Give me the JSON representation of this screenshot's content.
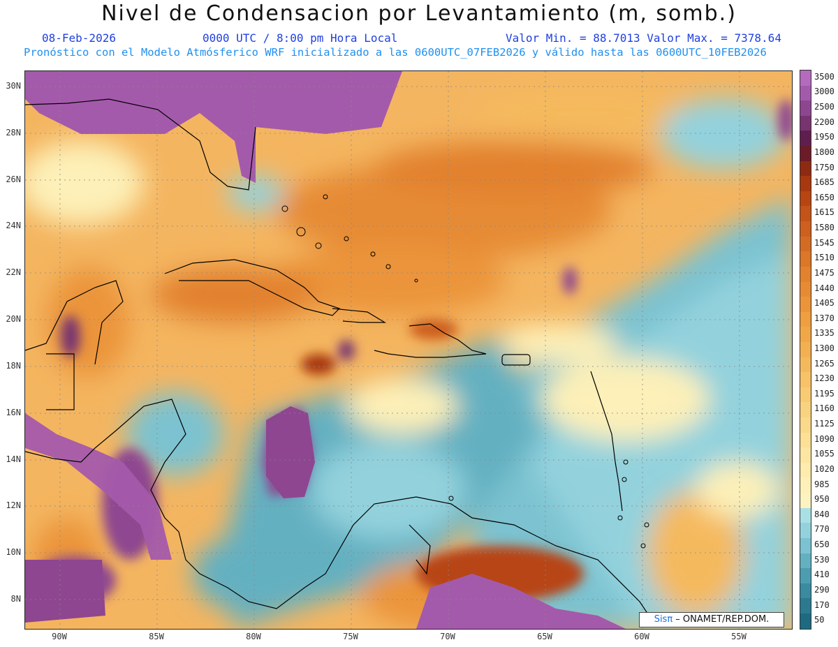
{
  "header": {
    "title": "Nivel de Condensacion por Levantamiento (m, somb.)",
    "date": "08-Feb-2026",
    "time": "0000 UTC / 8:00 pm Hora Local",
    "minmax": "Valor Min. = 88.7013  Valor Max. = 7378.64",
    "description": "Pronóstico con el Modelo Atmósferico WRF inicializado a las 0600UTC_07FEB2026 y válido hasta las  0600UTC_10FEB2026"
  },
  "map": {
    "projection": "lat-lon",
    "lon_range": [
      -92,
      -52.5
    ],
    "lat_range": [
      7,
      30.5
    ],
    "lat_ticks": [
      {
        "value": 30,
        "label": "30N"
      },
      {
        "value": 28,
        "label": "28N"
      },
      {
        "value": 26,
        "label": "26N"
      },
      {
        "value": 24,
        "label": "24N"
      },
      {
        "value": 22,
        "label": "22N"
      },
      {
        "value": 20,
        "label": "20N"
      },
      {
        "value": 18,
        "label": "18N"
      },
      {
        "value": 16,
        "label": "16N"
      },
      {
        "value": 14,
        "label": "14N"
      },
      {
        "value": 12,
        "label": "12N"
      },
      {
        "value": 10,
        "label": "10N"
      },
      {
        "value": 8,
        "label": "8N"
      }
    ],
    "lon_ticks": [
      {
        "value": -90,
        "label": "90W"
      },
      {
        "value": -85,
        "label": "85W"
      },
      {
        "value": -80,
        "label": "80W"
      },
      {
        "value": -75,
        "label": "75W"
      },
      {
        "value": -70,
        "label": "70W"
      },
      {
        "value": -65,
        "label": "65W"
      },
      {
        "value": -60,
        "label": "60W"
      },
      {
        "value": -55,
        "label": "55W"
      }
    ],
    "gridlines": "dotted"
  },
  "colorbar": {
    "labels": [
      "3500",
      "3000",
      "2500",
      "2200",
      "1950",
      "1800",
      "1750",
      "1685",
      "1650",
      "1615",
      "1580",
      "1545",
      "1510",
      "1475",
      "1440",
      "1405",
      "1370",
      "1335",
      "1300",
      "1265",
      "1230",
      "1195",
      "1160",
      "1125",
      "1090",
      "1055",
      "1020",
      "985",
      "950",
      "840",
      "770",
      "650",
      "530",
      "410",
      "290",
      "170",
      "50"
    ],
    "colors": [
      "#b46bbd",
      "#a45aab",
      "#8e4690",
      "#78346f",
      "#5e1f4f",
      "#6b1c28",
      "#8f2a12",
      "#a8380f",
      "#b74512",
      "#c35318",
      "#cd5f1f",
      "#d46b24",
      "#dc7628",
      "#e2812e",
      "#e68b34",
      "#eb943a",
      "#ef9e40",
      "#f1a748",
      "#f3b052",
      "#f5b95d",
      "#f7c268",
      "#f8ca73",
      "#f9d27f",
      "#fad98a",
      "#fbe096",
      "#fce6a1",
      "#fdecad",
      "#fdf0b8",
      "#fdf3c0",
      "#a8e0e6",
      "#93d2dd",
      "#7cc2d0",
      "#63b0c1",
      "#4d9db1",
      "#3a8aa0",
      "#2c7a90",
      "#1e6a80"
    ]
  },
  "credit": {
    "prefix": "Sisπ",
    "text": " – ONAMET/REP.DOM."
  }
}
